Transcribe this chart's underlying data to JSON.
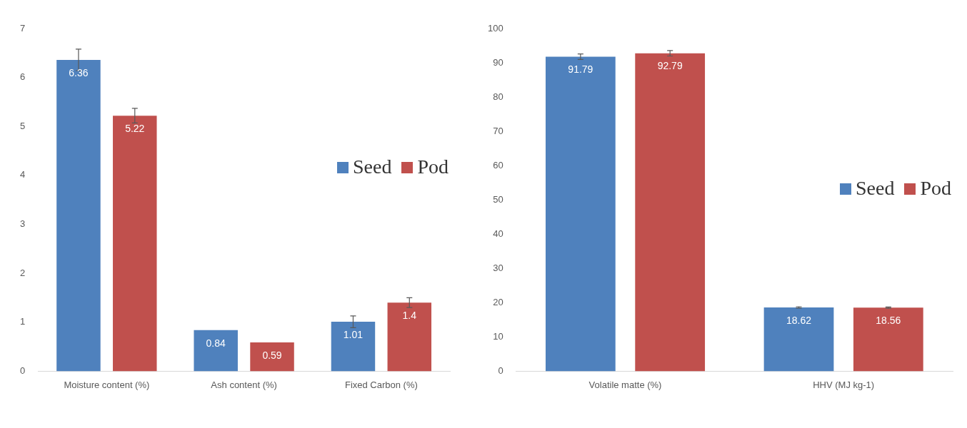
{
  "chart_data": [
    {
      "type": "bar",
      "categories": [
        "Moisture content (%)",
        "Ash content (%)",
        "Fixed Carbon (%)"
      ],
      "series": [
        {
          "name": "Seed",
          "color": "#4f81bd",
          "values": [
            6.36,
            0.84,
            1.01
          ],
          "errors": [
            0.22,
            null,
            0.12
          ]
        },
        {
          "name": "Pod",
          "color": "#c0504d",
          "values": [
            5.22,
            0.59,
            1.4
          ],
          "errors": [
            0.15,
            null,
            0.1
          ]
        }
      ],
      "ylim": [
        0,
        7
      ],
      "yticks": [
        0,
        1,
        2,
        3,
        4,
        5,
        6,
        7
      ],
      "grid": false,
      "legend": "right",
      "data_labels": true
    },
    {
      "type": "bar",
      "categories": [
        "Volatile matte (%)",
        "HHV (MJ kg-1)"
      ],
      "series": [
        {
          "name": "Seed",
          "color": "#4f81bd",
          "values": [
            91.79,
            18.62
          ],
          "errors": [
            0.8,
            0.2
          ]
        },
        {
          "name": "Pod",
          "color": "#c0504d",
          "values": [
            92.79,
            18.56
          ],
          "errors": [
            0.8,
            0.2
          ]
        }
      ],
      "ylim": [
        0,
        100
      ],
      "yticks": [
        0,
        10,
        20,
        30,
        40,
        50,
        60,
        70,
        80,
        90,
        100
      ],
      "grid": false,
      "legend": "right",
      "data_labels": true
    }
  ]
}
